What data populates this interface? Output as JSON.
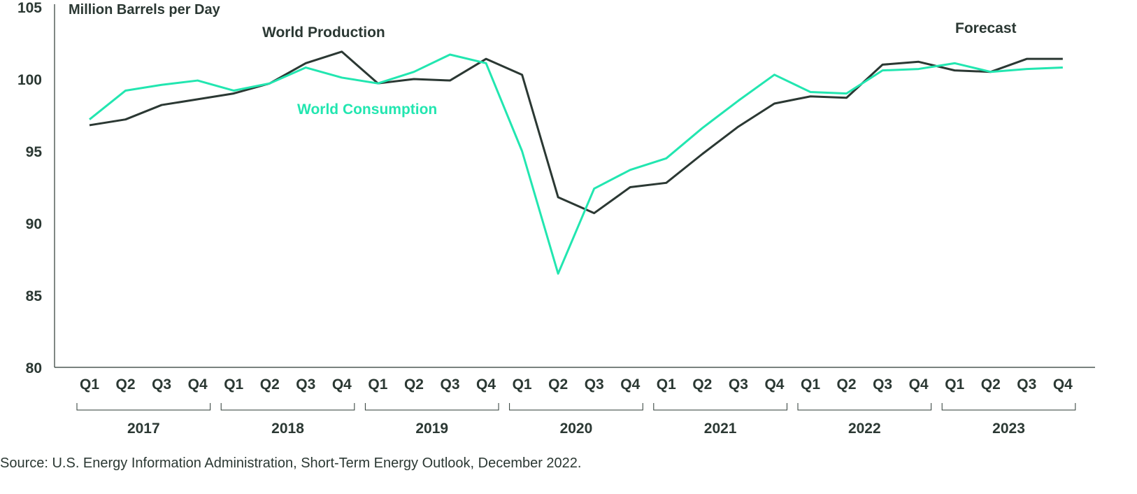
{
  "chart_data": {
    "type": "line",
    "title": "",
    "ylabel": "Million Barrels per Day",
    "xlabel": "",
    "ylim": [
      80,
      105
    ],
    "yticks": [
      80,
      85,
      90,
      95,
      100,
      105
    ],
    "quarters": [
      "Q1",
      "Q2",
      "Q3",
      "Q4"
    ],
    "years": [
      "2017",
      "2018",
      "2019",
      "2020",
      "2021",
      "2022",
      "2023"
    ],
    "series": [
      {
        "name": "World Production",
        "color": "#2b3833",
        "values": [
          96.8,
          97.2,
          98.2,
          98.6,
          99.0,
          99.7,
          101.1,
          101.9,
          99.7,
          100.0,
          99.9,
          101.4,
          100.3,
          91.8,
          90.7,
          92.5,
          92.8,
          94.8,
          96.7,
          98.3,
          98.8,
          98.7,
          101.0,
          101.2,
          100.6,
          100.5,
          101.4,
          101.4
        ]
      },
      {
        "name": "World Consumption",
        "color": "#22e6b0",
        "values": [
          97.2,
          99.2,
          99.6,
          99.9,
          99.2,
          99.7,
          100.8,
          100.1,
          99.7,
          100.5,
          101.7,
          101.1,
          95.0,
          86.5,
          92.4,
          93.7,
          94.5,
          96.6,
          98.5,
          100.3,
          99.1,
          99.0,
          100.6,
          100.7,
          101.1,
          100.5,
          100.7,
          100.8
        ]
      }
    ],
    "annotations": [
      "Forecast"
    ],
    "grid": false,
    "source": "Source: U.S. Energy Information Administration, Short-Term Energy Outlook, December 2022."
  }
}
